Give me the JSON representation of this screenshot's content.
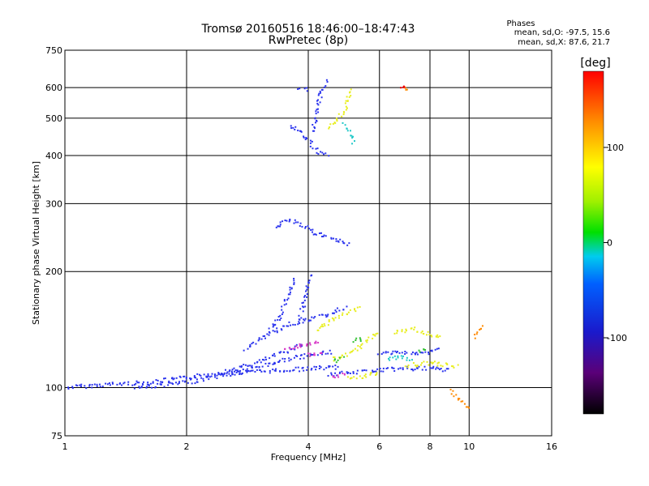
{
  "chart_data": {
    "type": "scatter",
    "title": "Tromsø 20160516 18:46:00–18:47:43",
    "subtitle": "RwPretec (8p)",
    "xlabel": "Frequency [MHz]",
    "ylabel": "Stationary phase Virtual Height [km]",
    "x_scale": "log2",
    "y_scale": "log",
    "xlim": [
      1,
      16
    ],
    "ylim": [
      75,
      750
    ],
    "x_ticks": [
      1,
      2,
      4,
      6,
      8,
      10,
      16
    ],
    "y_ticks": [
      75,
      100,
      200,
      300,
      400,
      500,
      600,
      750
    ],
    "grid": true,
    "stats": {
      "title": "Phases",
      "line_o": "mean, sd,O: -97.5, 15.6",
      "line_x": "mean, sd,X: 87.6, 21.7"
    },
    "colorbar": {
      "label": "[deg]",
      "range": [
        -180,
        180
      ],
      "ticks": [
        -100,
        0,
        100
      ],
      "tick_labels": [
        "-100",
        "0",
        "100"
      ]
    },
    "series": [
      {
        "color": "#2a33ee",
        "phase": -100,
        "segments": [
          [
            [
              1.0,
              100
            ],
            [
              1.3,
              102
            ],
            [
              1.6,
              103
            ],
            [
              2.0,
              106
            ],
            [
              2.5,
              110
            ],
            [
              3.0,
              116
            ],
            [
              3.5,
              124
            ],
            [
              3.9,
              130
            ]
          ],
          [
            [
              1.5,
              100
            ],
            [
              2.0,
              103
            ],
            [
              2.5,
              108
            ],
            [
              3.0,
              113
            ],
            [
              3.5,
              118
            ],
            [
              4.0,
              121
            ],
            [
              4.6,
              124
            ]
          ],
          [
            [
              2.4,
              108
            ],
            [
              3.0,
              110
            ],
            [
              3.5,
              111
            ],
            [
              4.0,
              112
            ],
            [
              4.8,
              113
            ]
          ],
          [
            [
              3.2,
              140
            ],
            [
              3.4,
              152
            ],
            [
              3.5,
              165
            ],
            [
              3.6,
              178
            ],
            [
              3.7,
              192
            ]
          ],
          [
            [
              3.8,
              150
            ],
            [
              3.9,
              165
            ],
            [
              4.0,
              182
            ],
            [
              4.05,
              198
            ]
          ],
          [
            [
              2.8,
              126
            ],
            [
              3.2,
              138
            ],
            [
              3.6,
              146
            ],
            [
              4.0,
              150
            ],
            [
              4.5,
              155
            ],
            [
              5.0,
              162
            ]
          ],
          [
            [
              3.6,
              480
            ],
            [
              3.8,
              462
            ],
            [
              4.0,
              438
            ],
            [
              4.2,
              410
            ],
            [
              4.5,
              400
            ]
          ],
          [
            [
              4.1,
              460
            ],
            [
              4.2,
              520
            ],
            [
              4.3,
              580
            ],
            [
              4.45,
              630
            ]
          ],
          [
            [
              3.3,
              260
            ],
            [
              3.6,
              272
            ],
            [
              3.9,
              262
            ],
            [
              4.2,
              250
            ],
            [
              4.6,
              244
            ],
            [
              5.1,
              235
            ]
          ],
          [
            [
              4.5,
              108
            ],
            [
              5.0,
              109
            ],
            [
              5.5,
              110
            ],
            [
              6.0,
              111
            ],
            [
              7.0,
              112
            ],
            [
              8.0,
              112
            ],
            [
              9.0,
              111
            ]
          ],
          [
            [
              6.0,
              122
            ],
            [
              6.5,
              124
            ],
            [
              7.0,
              123
            ],
            [
              7.5,
              122
            ],
            [
              8.0,
              124
            ],
            [
              8.5,
              126
            ]
          ],
          [
            [
              3.8,
              600
            ],
            [
              4.0,
              590
            ]
          ]
        ]
      },
      {
        "color": "#e8ee20",
        "phase": 95,
        "segments": [
          [
            [
              4.2,
              140
            ],
            [
              4.5,
              148
            ],
            [
              4.8,
              154
            ],
            [
              5.2,
              158
            ],
            [
              5.4,
              162
            ]
          ],
          [
            [
              4.5,
              470
            ],
            [
              4.7,
              490
            ],
            [
              4.9,
              520
            ],
            [
              5.0,
              560
            ],
            [
              5.1,
              600
            ]
          ],
          [
            [
              4.6,
              118
            ],
            [
              5.0,
              122
            ],
            [
              5.5,
              130
            ],
            [
              6.0,
              140
            ]
          ],
          [
            [
              6.5,
              138
            ],
            [
              7.2,
              142
            ],
            [
              8.0,
              138
            ],
            [
              8.6,
              134
            ]
          ],
          [
            [
              7.0,
              114
            ],
            [
              8.0,
              116
            ],
            [
              9.0,
              114
            ],
            [
              9.4,
              113
            ]
          ],
          [
            [
              5.0,
              106
            ],
            [
              5.5,
              107
            ],
            [
              6.0,
              109
            ]
          ]
        ]
      },
      {
        "color": "#20c8c8",
        "phase": 20,
        "segments": [
          [
            [
              4.9,
              480
            ],
            [
              5.1,
              455
            ],
            [
              5.2,
              430
            ]
          ],
          [
            [
              6.3,
              118
            ],
            [
              6.8,
              120
            ],
            [
              7.3,
              118
            ]
          ]
        ]
      },
      {
        "color": "#d83ac8",
        "phase": -130,
        "segments": [
          [
            [
              3.5,
              126
            ],
            [
              3.9,
              129
            ],
            [
              4.3,
              131
            ]
          ],
          [
            [
              4.0,
              121
            ],
            [
              4.4,
              123
            ]
          ],
          [
            [
              4.6,
              107
            ],
            [
              5.0,
              108
            ]
          ]
        ]
      },
      {
        "color": "#30c030",
        "phase": 40,
        "segments": [
          [
            [
              4.6,
              117
            ],
            [
              4.9,
              119
            ]
          ],
          [
            [
              5.2,
              132
            ],
            [
              5.5,
              134
            ]
          ],
          [
            [
              7.5,
              124
            ],
            [
              7.9,
              125
            ]
          ]
        ]
      },
      {
        "color": "#ff8a00",
        "phase": 150,
        "segments": [
          [
            [
              6.9,
              595
            ],
            [
              7.0,
              600
            ]
          ],
          [
            [
              10.3,
              135
            ],
            [
              10.6,
              140
            ],
            [
              10.8,
              146
            ]
          ],
          [
            [
              9.0,
              98
            ],
            [
              9.5,
              93
            ],
            [
              10.0,
              88
            ]
          ]
        ]
      },
      {
        "color": "#ee0000",
        "phase": 170,
        "segments": [
          [
            [
              6.8,
              600
            ],
            [
              6.9,
              602
            ]
          ]
        ]
      }
    ]
  }
}
